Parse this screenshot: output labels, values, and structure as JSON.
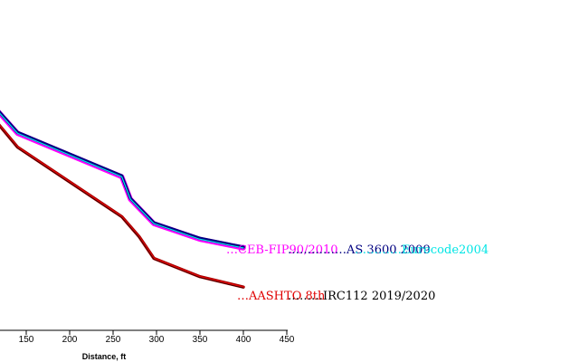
{
  "chart_data": {
    "type": "line",
    "title": "",
    "xlabel": "Distance, ft",
    "ylabel": "",
    "xlim": [
      115,
      450
    ],
    "xticks": [
      150,
      200,
      250,
      300,
      350,
      400,
      450
    ],
    "series": [
      {
        "name": "CEB-FIP90/2010",
        "color": "#ff00ff",
        "dotted_prefix": "…",
        "x": [
          115,
          140,
          260,
          270,
          297,
          350,
          400
        ],
        "y": [
          48.0,
          45.2,
          40.2,
          37.6,
          34.8,
          33.0,
          32.0
        ]
      },
      {
        "name": "AS 3600 2009",
        "color": "#000080",
        "dotted_prefix": "……………",
        "x": [
          115,
          140,
          260,
          270,
          297,
          350,
          400
        ],
        "y": [
          48.1,
          45.3,
          40.3,
          37.7,
          34.9,
          33.1,
          32.1
        ]
      },
      {
        "name": "Eurocode2004",
        "color": "#00e5e5",
        "dotted_prefix": "…………",
        "x": [
          115,
          140,
          260,
          270,
          297,
          350,
          400
        ],
        "y": [
          48.0,
          45.2,
          40.2,
          37.6,
          34.8,
          33.0,
          32.0
        ]
      },
      {
        "name": "AASHTO 8th",
        "color": "#e00000",
        "dotted_prefix": "…",
        "x": [
          115,
          140,
          260,
          280,
          297,
          350,
          400
        ],
        "y": [
          46.6,
          43.6,
          35.6,
          33.3,
          30.8,
          28.7,
          27.5
        ]
      },
      {
        "name": "IRC112 2019/2020",
        "color": "#000000",
        "dotted_prefix": "………",
        "x": [
          115,
          140,
          260,
          280,
          297,
          350,
          400
        ],
        "y": [
          46.5,
          43.5,
          35.5,
          33.2,
          30.7,
          28.6,
          27.4
        ]
      }
    ]
  }
}
